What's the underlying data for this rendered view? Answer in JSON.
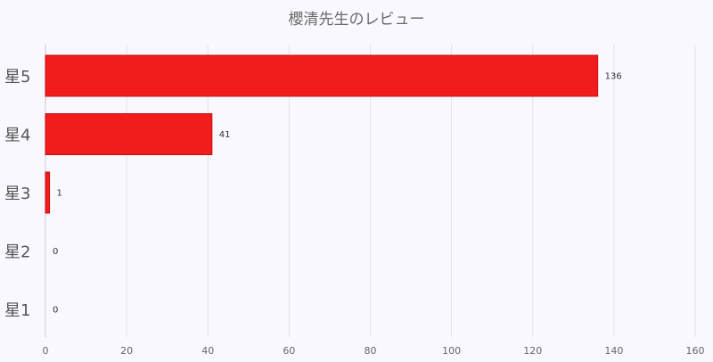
{
  "chart_data": {
    "type": "bar",
    "orientation": "horizontal",
    "title": "櫻清先生のレビュー",
    "categories": [
      "星5",
      "星4",
      "星3",
      "星2",
      "星1"
    ],
    "values": [
      136,
      41,
      1,
      0,
      0
    ],
    "xlim": [
      0,
      160
    ],
    "xticks": [
      0,
      20,
      40,
      60,
      80,
      100,
      120,
      140,
      160
    ],
    "xlabel": "",
    "ylabel": "",
    "grid": true,
    "legend": "none",
    "bar_color": "#f11c1c",
    "bar_edge_color": "#c31010"
  }
}
